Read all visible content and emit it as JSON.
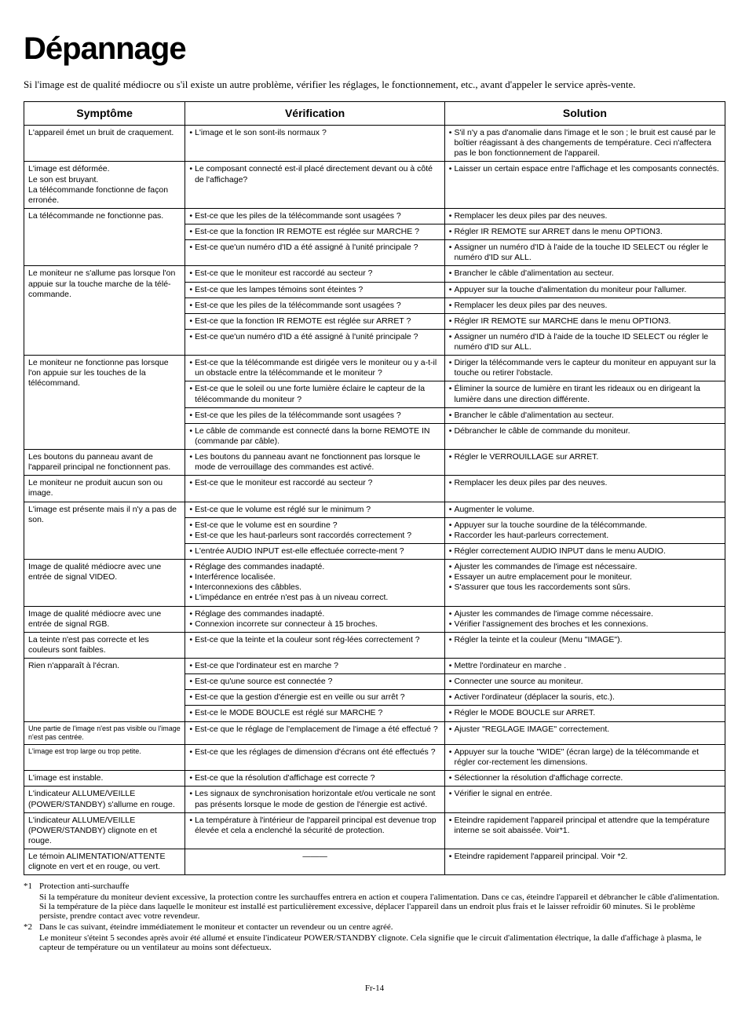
{
  "title": "Dépannage",
  "intro": "Si l'image est de qualité médiocre ou s'il existe un autre problème, vérifier les réglages, le fonctionnement, etc., avant d'appeler le service après-vente.",
  "headers": {
    "symptom": "Symptôme",
    "verif": "Vérification",
    "solution": "Solution"
  },
  "rows": [
    {
      "g": true,
      "s": "L'appareil émet un bruit de craquement.",
      "v": "L'image et le son sont-ils normaux ?",
      "so": "S'il n'y a pas d'anomalie dans l'image et le son ; le bruit est causé par le boîtier réagissant à des changements de température. Ceci n'affectera pas le bon fonctionnement de l'appareil."
    },
    {
      "g": true,
      "s": "L'image est déformée.\nLe son est bruyant.\nLa télécommande fonctionne de façon erronée.",
      "v": "Le composant connecté est-il placé directement devant ou à côté de l'affichage?",
      "so": "Laisser un certain espace entre l'affichage et les composants connectés."
    },
    {
      "g": true,
      "s": "La télécommande ne fonctionne pas.",
      "srows": 3,
      "v": "Est-ce que les piles de la télécommande sont usagées ?",
      "so": "Remplacer les deux piles par des neuves."
    },
    {
      "v": "Est-ce que la fonction IR REMOTE est réglée sur MARCHE ?",
      "so": "Régler IR REMOTE sur ARRET dans le menu OPTION3."
    },
    {
      "v": "Est-ce que'un numéro d'ID a été assigné à l'unité principale ?",
      "so": "Assigner un numéro d'ID à l'aide de la touche ID SELECT ou régler le numéro d'ID sur ALL."
    },
    {
      "g": true,
      "s": "Le moniteur ne s'allume pas lorsque l'on appuie sur la touche marche de la télé-commande.",
      "srows": 5,
      "v": "Est-ce que le moniteur est raccordé au secteur ?",
      "so": "Brancher le câble d'alimentation au secteur."
    },
    {
      "v": "Est-ce que les lampes témoins sont éteintes ?",
      "so": "Appuyer sur la touche d'alimentation du moniteur pour l'allumer."
    },
    {
      "v": "Est-ce que les piles de la télécommande sont usagées ?",
      "so": "Remplacer les deux piles par des neuves."
    },
    {
      "v": "Est-ce que la fonction IR REMOTE est réglée sur ARRET ?",
      "so": "Régler IR REMOTE sur MARCHE dans le menu OPTION3."
    },
    {
      "v": "Est-ce que'un numéro d'ID a été assigné à l'unité principale ?",
      "so": "Assigner un numéro d'ID à l'aide de la touche ID SELECT ou régler le numéro d'ID sur ALL."
    },
    {
      "g": true,
      "s": "Le moniteur ne fonctionne pas lorsque l'on appuie sur les touches de la télécommand.",
      "srows": 4,
      "v": "Est-ce que la télécommande est dirigée vers le moniteur ou y a-t-il un obstacle entre la télécommande et le moniteur ?",
      "so": "Diriger la télécommande vers le capteur du moniteur en appuyant sur la touche ou retirer l'obstacle."
    },
    {
      "v": "Est-ce que le soleil ou une forte lumière éclaire le capteur de la télécommande du moniteur ?",
      "so": "Éliminer la source de lumière en tirant les rideaux ou en dirigeant la lumière dans une direction différente."
    },
    {
      "v": "Est-ce que les piles de la télécommande sont usagées ?",
      "so": "Brancher le câble d'alimentation au secteur."
    },
    {
      "v": "Le câble de commande est connecté dans la borne REMOTE IN (commande par câble).",
      "so": "Débrancher le câble de commande du moniteur."
    },
    {
      "g": true,
      "s": "Les boutons du panneau avant de l'appareil principal ne fonctionnent pas.",
      "v": "Les boutons du panneau avant ne fonctionnent pas lorsque le mode de verrouillage des commandes est activé.",
      "so": "Régler le VERROUILLAGE sur ARRET."
    },
    {
      "g": true,
      "s": "Le moniteur ne produit aucun son ou image.",
      "v": "Est-ce que le moniteur est raccordé au secteur ?",
      "so": "Remplacer les deux piles par des neuves."
    },
    {
      "g": true,
      "s": "L'image est présente mais il n'y a pas de son.",
      "srows": 3,
      "v": "Est-ce que le volume est réglé sur le minimum ?",
      "so": "Augmenter le volume."
    },
    {
      "v": "Est-ce que le volume est en sourdine ?\nEst-ce que les haut-parleurs sont raccordés correctement ?",
      "so": "Appuyer sur la touche sourdine de la télécommande.\nRaccorder les haut-parleurs correctement."
    },
    {
      "v": "L'entrée AUDIO INPUT est-elle effectuée correcte-ment ?",
      "so": "Régler correctement AUDIO INPUT dans le menu AUDIO."
    },
    {
      "g": true,
      "s": "Image de qualité médiocre avec une entrée de signal VIDEO.",
      "v": "Réglage des commandes inadapté.\nInterférence localisée.\nInterconnexions des câbbles.\nL'impédance en entrée n'est pas à un niveau correct.",
      "so": "Ajuster les commandes de l'image est nécessaire.\nEssayer un autre emplacement pour le moniteur.\nS'assurer que tous les raccordements sont sûrs."
    },
    {
      "g": true,
      "s": "Image de qualité médiocre avec une entrée de signal RGB.",
      "v": "Réglage des commandes inadapté.\nConnexion incorrete sur connecteur à 15 broches.",
      "so": "Ajuster les commandes de l'image comme nécessaire.\nVérifier l'assignement des broches et les connexions."
    },
    {
      "g": true,
      "s": "La teinte n'est pas correcte et les couleurs sont faibles.",
      "v": "Est-ce que la teinte et la couleur sont rég-lées correctement ?",
      "so": "Régler la teinte et la couleur (Menu \"IMAGE\")."
    },
    {
      "g": true,
      "s": "Rien n'apparaît à l'écran.",
      "srows": 4,
      "v": "Est-ce que l'ordinateur est en marche ?",
      "so": "Mettre l'ordinateur en marche ."
    },
    {
      "v": "Est-ce qu'une source est connectée ?",
      "so": "Connecter une source au moniteur."
    },
    {
      "v": "Est-ce que la gestion d'énergie est en veille ou sur arrêt ?",
      "so": "Activer l'ordinateur (déplacer la souris, etc.)."
    },
    {
      "v": "Est-ce  le MODE BOUCLE est réglé sur MARCHE ?",
      "so": "Régler le MODE BOUCLE sur ARRET."
    },
    {
      "g": true,
      "s": "Une partie de l'image n'est pas visible ou l'image n'est pas centrée.",
      "sSmall": true,
      "v": "Est-ce que le réglage de l'emplacement de l'image a été effectué ?",
      "so": "Ajuster \"REGLAGE IMAGE\" correctement."
    },
    {
      "g": true,
      "s": "L'image est trop large ou trop petite.",
      "sSmall": true,
      "v": "Est-ce que les réglages de dimension d'écrans ont été effectués ?",
      "so": "Appuyer sur la touche \"WIDE\" (écran large) de la télécommande et régler cor-rectement les dimensions."
    },
    {
      "g": true,
      "s": "L'image est instable.",
      "v": "Est-ce que la résolution d'affichage est correcte ?",
      "so": "Sélectionner la résolution d'affichage correcte."
    },
    {
      "g": true,
      "s": "L'indicateur ALLUME/VEILLE (POWER/STANDBY) s'allume en rouge.",
      "v": "Les signaux de synchronisation horizontale et/ou verticale ne sont pas présents lorsque le mode de gestion de l'énergie est activé.",
      "so": "Vérifier le signal en entrée."
    },
    {
      "g": true,
      "s": "L'indicateur ALLUME/VEILLE (POWER/STANDBY) clignote en et rouge.",
      "v": "La température à l'intérieur de l'appareil principal est devenue trop élevée et cela a enclenché la sécurité de protection.",
      "so": "Eteindre rapidement l'appareil principal et attendre que la température interne se soit abaissée. Voir*1."
    },
    {
      "g": true,
      "s": "Le témoin ALIMENTATION/ATTENTE clignote en vert et en rouge, ou vert.",
      "vDash": true,
      "so": "Eteindre rapidement l'appareil principal. Voir *2."
    }
  ],
  "footnotes": [
    {
      "marker": "*1",
      "label": "Protection anti-surchauffe",
      "body": "Si la température du moniteur devient excessive, la protection contre les surchauffes entrera en action et coupera l'alimentation. Dans ce cas, éteindre l'appareil et débrancher le câble d'alimentation. Si la température de la pièce dans laquelle le moniteur est installé est particulièrement excessive, déplacer l'appareil dans un endroit plus frais et le laisser refroidir 60 minutes. Si le problème persiste, prendre contact avec votre revendeur."
    },
    {
      "marker": "*2",
      "label": "Dans le cas suivant, éteindre immédiatement le moniteur et contacter un revendeur ou un centre agréé.",
      "body": "Le moniteur s'éteint 5 secondes après avoir été allumé et ensuite l'indicateur POWER/STANDBY clignote. Cela signifie que le circuit d'alimentation électrique, la dalle d'affichage à plasma, le capteur de température ou un ventilateur au moins sont défectueux."
    }
  ],
  "pageNumber": "Fr-14"
}
